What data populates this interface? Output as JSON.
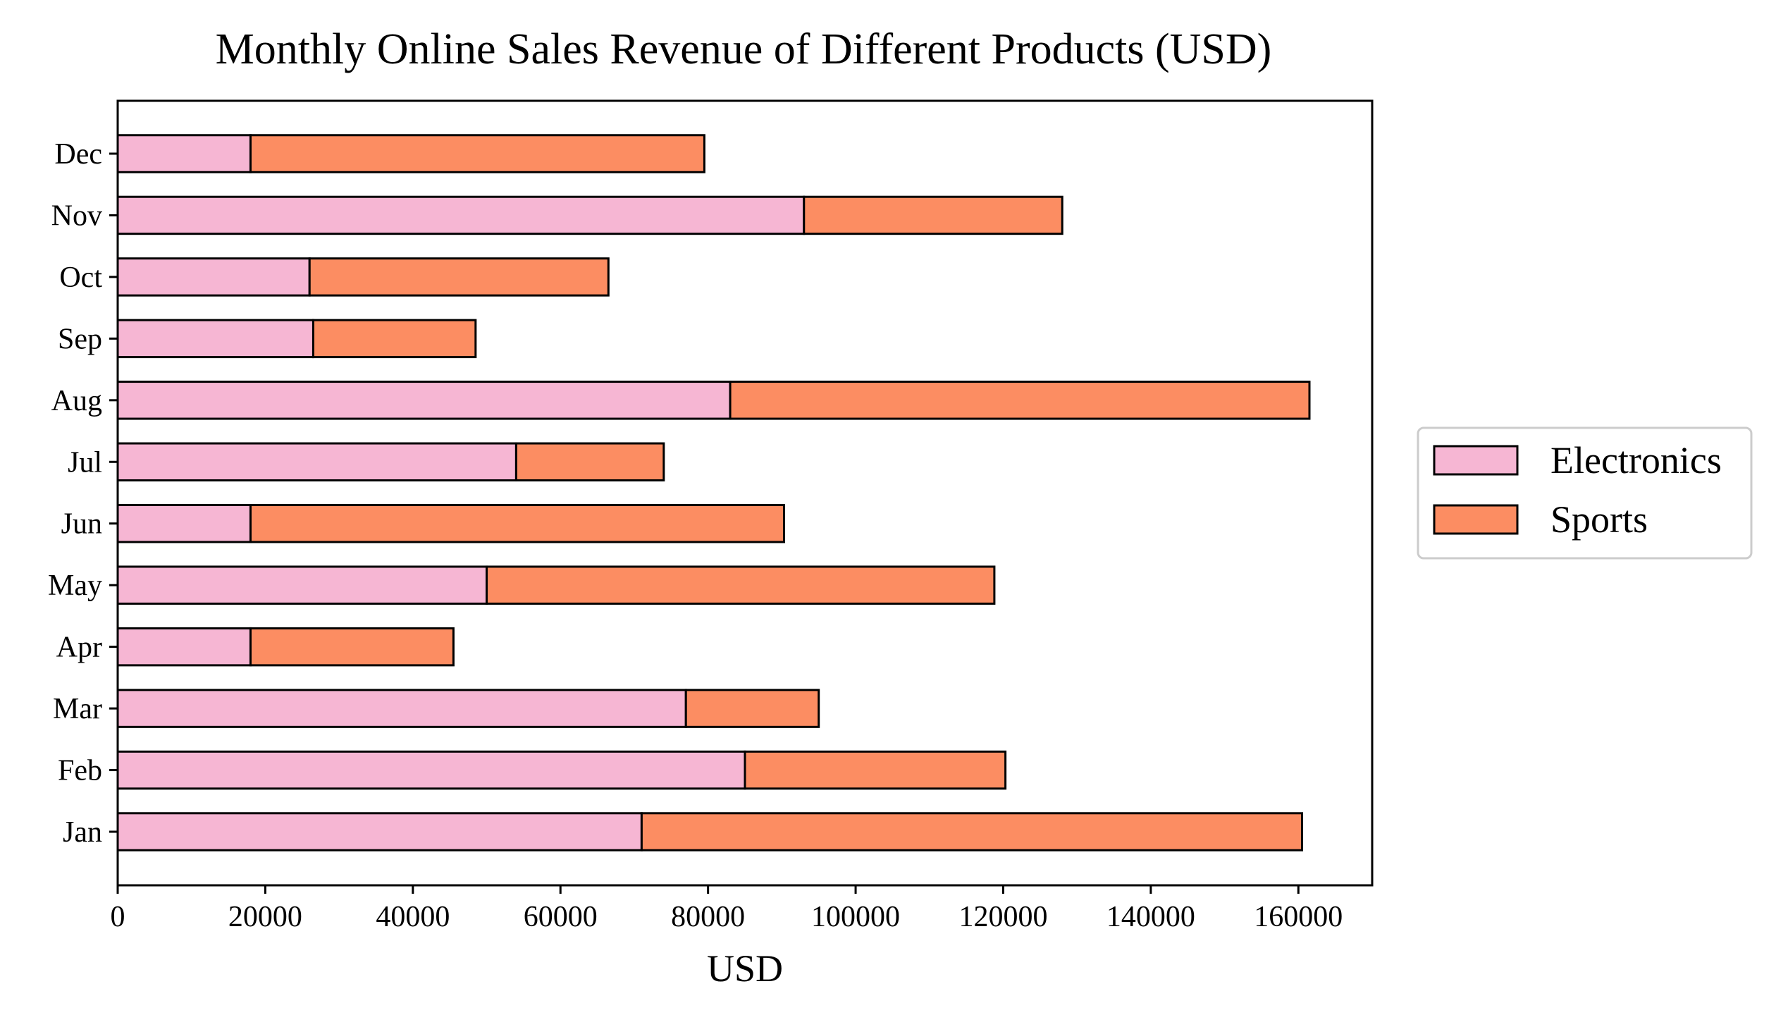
{
  "chart_data": {
    "type": "bar",
    "orientation": "horizontal",
    "stacked": true,
    "title": "Monthly Online Sales Revenue of Different Products (USD)",
    "xlabel": "USD",
    "ylabel": "",
    "categories": [
      "Jan",
      "Feb",
      "Mar",
      "Apr",
      "May",
      "Jun",
      "Jul",
      "Aug",
      "Sep",
      "Oct",
      "Nov",
      "Dec"
    ],
    "series": [
      {
        "name": "Electronics",
        "color": "#f6b6d3",
        "values": [
          71000,
          85000,
          77000,
          18000,
          50000,
          18000,
          54000,
          83000,
          26500,
          26000,
          93000,
          18000
        ]
      },
      {
        "name": "Sports",
        "color": "#fc8d62",
        "values": [
          89500,
          35300,
          18000,
          27500,
          68800,
          72300,
          20000,
          78500,
          22000,
          40500,
          35000,
          61500
        ]
      }
    ],
    "xlim": [
      0,
      170000
    ],
    "xticks": [
      0,
      20000,
      40000,
      60000,
      80000,
      100000,
      120000,
      140000,
      160000
    ],
    "grid": false,
    "legend": "center-right-outside"
  }
}
